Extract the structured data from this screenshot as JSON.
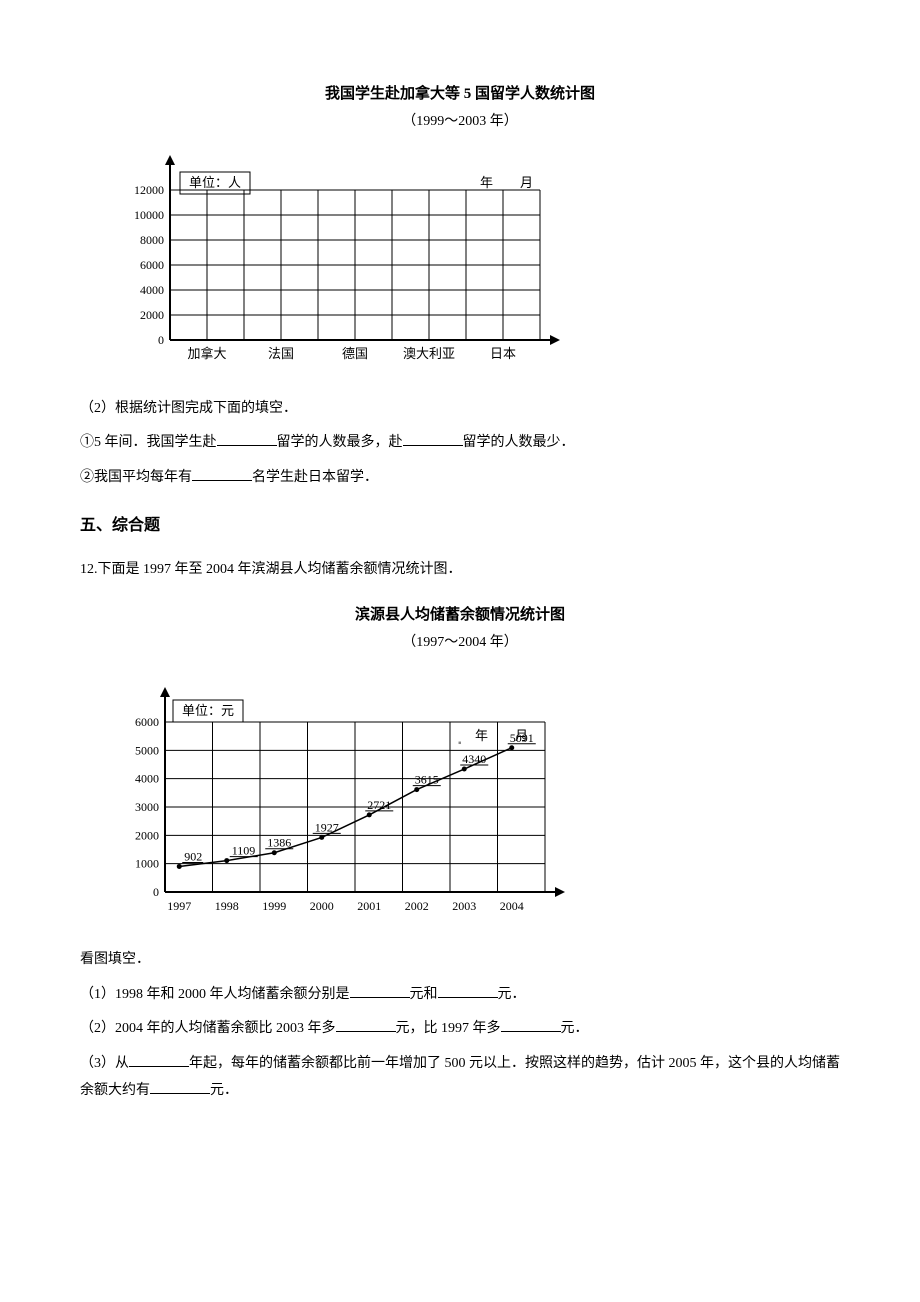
{
  "chart1": {
    "title": "我国学生赴加拿大等 5 国留学人数统计图",
    "subtitle": "（1999～2003 年）",
    "unit_label": "单位：人",
    "top_right1": "年",
    "top_right2": "月",
    "y_ticks": [
      "0",
      "2000",
      "4000",
      "6000",
      "8000",
      "10000",
      "12000"
    ],
    "x_labels": [
      "加拿大",
      "法国",
      "德国",
      "澳大利亚",
      "日本"
    ],
    "grid_color": "#000000",
    "bg_color": "#ffffff"
  },
  "q2_intro": "（2）根据统计图完成下面的填空．",
  "q2_1_a": "①5 年间．我国学生赴",
  "q2_1_b": "留学的人数最多，赴",
  "q2_1_c": "留学的人数最少．",
  "q2_2_a": "②我国平均每年有",
  "q2_2_b": "名学生赴日本留学．",
  "section5": "五、综合题",
  "q12_intro": "12.下面是 1997 年至 2004 年滨湖县人均储蓄余额情况统计图．",
  "chart2": {
    "title": "滨源县人均储蓄余额情况统计图",
    "subtitle": "（1997～2004 年）",
    "unit_label": "单位：元",
    "top_right1": "年",
    "top_right2": "月",
    "y_ticks": [
      "0",
      "1000",
      "2000",
      "3000",
      "4000",
      "5000",
      "6000"
    ],
    "x_labels": [
      "1997",
      "1998",
      "1999",
      "2000",
      "2001",
      "2002",
      "2003",
      "2004"
    ],
    "values": [
      902,
      1109,
      1386,
      1927,
      2721,
      3615,
      4340,
      5091
    ],
    "value_labels": [
      "902",
      "1109",
      "1386",
      "1927",
      "2721",
      "3615",
      "4340",
      "5091"
    ],
    "grid_color": "#000000",
    "line_color": "#000000",
    "bg_color": "#ffffff"
  },
  "q12_fill": "看图填空．",
  "q12_1_a": "（1）1998 年和 2000 年人均储蓄余额分别是",
  "q12_1_b": "元和",
  "q12_1_c": "元．",
  "q12_2_a": "（2）2004 年的人均储蓄余额比 2003 年多",
  "q12_2_b": "元，比 1997 年多",
  "q12_2_c": "元．",
  "q12_3_a": "（3）从",
  "q12_3_b": "年起，每年的储蓄余额都比前一年增加了 500 元以上．按照这样的趋势，估计 2005 年，这个县的人均储蓄余额大约有",
  "q12_3_c": "元．",
  "pause_icon": "▪"
}
